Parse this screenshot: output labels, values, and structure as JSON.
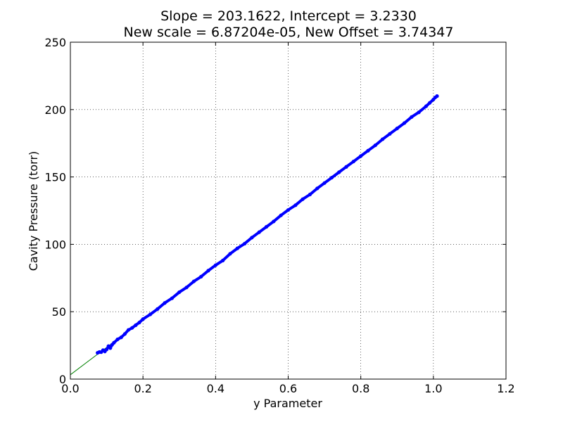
{
  "chart_data": {
    "type": "scatter",
    "title_lines": [
      "Slope = 203.1622, Intercept = 3.2330",
      "New scale = 6.87204e-05, New Offset =     3.74347"
    ],
    "xlabel": "y Parameter",
    "ylabel": "Cavity Pressure (torr)",
    "xlim": [
      0.0,
      1.2
    ],
    "ylim": [
      0,
      250
    ],
    "x_ticks": [
      "0.0",
      "0.2",
      "0.4",
      "0.6",
      "0.8",
      "1.0",
      "1.2"
    ],
    "y_ticks": [
      "0",
      "50",
      "100",
      "150",
      "200",
      "250"
    ],
    "grid": true,
    "colors": {
      "points": "#0000ff",
      "fit_line": "#008000",
      "grid": "#000000"
    },
    "fit_line": {
      "slope": 203.1622,
      "intercept": 3.233,
      "x": [
        0.0,
        1.0
      ]
    },
    "series": [
      {
        "values": [
          [
            0.075,
            19.5
          ],
          [
            0.08,
            20.1
          ],
          [
            0.085,
            20.0
          ],
          [
            0.09,
            21.5
          ],
          [
            0.095,
            20.5
          ],
          [
            0.1,
            22.0
          ],
          [
            0.105,
            24.5
          ],
          [
            0.11,
            23.0
          ],
          [
            0.115,
            25.5
          ],
          [
            0.12,
            27.0
          ],
          [
            0.13,
            29.5
          ],
          [
            0.14,
            31.0
          ],
          [
            0.15,
            33.5
          ],
          [
            0.16,
            36.5
          ],
          [
            0.17,
            38.0
          ],
          [
            0.18,
            40.0
          ],
          [
            0.19,
            42.0
          ],
          [
            0.2,
            44.5
          ],
          [
            0.22,
            48.0
          ],
          [
            0.24,
            52.0
          ],
          [
            0.26,
            56.5
          ],
          [
            0.28,
            60.0
          ],
          [
            0.3,
            64.5
          ],
          [
            0.32,
            68.0
          ],
          [
            0.34,
            72.5
          ],
          [
            0.36,
            76.0
          ],
          [
            0.38,
            80.5
          ],
          [
            0.4,
            84.5
          ],
          [
            0.42,
            88.0
          ],
          [
            0.44,
            93.0
          ],
          [
            0.46,
            97.0
          ],
          [
            0.48,
            100.5
          ],
          [
            0.5,
            105.0
          ],
          [
            0.52,
            109.0
          ],
          [
            0.54,
            113.0
          ],
          [
            0.56,
            117.0
          ],
          [
            0.58,
            121.5
          ],
          [
            0.6,
            125.5
          ],
          [
            0.62,
            129.0
          ],
          [
            0.64,
            133.5
          ],
          [
            0.66,
            137.0
          ],
          [
            0.68,
            141.5
          ],
          [
            0.7,
            145.5
          ],
          [
            0.72,
            149.5
          ],
          [
            0.74,
            153.5
          ],
          [
            0.76,
            157.5
          ],
          [
            0.78,
            161.5
          ],
          [
            0.8,
            165.5
          ],
          [
            0.82,
            169.5
          ],
          [
            0.84,
            173.5
          ],
          [
            0.86,
            178.0
          ],
          [
            0.88,
            182.0
          ],
          [
            0.9,
            186.0
          ],
          [
            0.92,
            190.0
          ],
          [
            0.94,
            194.5
          ],
          [
            0.96,
            198.0
          ],
          [
            0.98,
            202.5
          ],
          [
            0.99,
            205.0
          ],
          [
            1.0,
            207.5
          ],
          [
            1.005,
            209.0
          ],
          [
            1.01,
            210.0
          ]
        ]
      }
    ]
  }
}
